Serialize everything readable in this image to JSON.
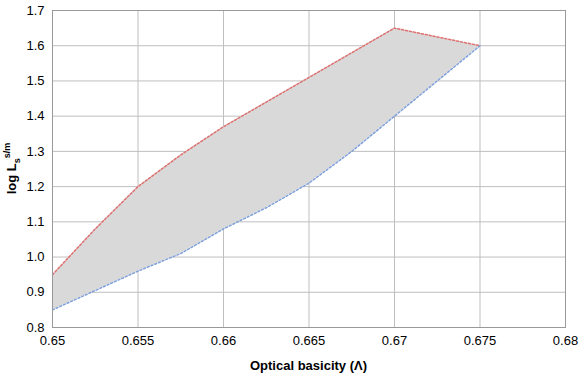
{
  "chart_data": {
    "type": "area_between",
    "x_label": "Optical basicity (Λ)",
    "y_label": "log L",
    "y_label_sub": "s",
    "y_label_sup": "s/m",
    "x": [
      0.65,
      0.6525,
      0.655,
      0.6575,
      0.66,
      0.6625,
      0.665,
      0.6675,
      0.67,
      0.6725,
      0.675
    ],
    "series": [
      {
        "color": "#e07070",
        "line_style": "dotted",
        "values": [
          0.95,
          1.08,
          1.2,
          1.29,
          1.37,
          1.44,
          1.51,
          1.58,
          1.65,
          1.625,
          1.6
        ]
      },
      {
        "color": "#7f9fd8",
        "line_style": "dotted",
        "values": [
          0.85,
          0.905,
          0.96,
          1.01,
          1.08,
          1.14,
          1.21,
          1.3,
          1.4,
          1.5,
          1.6
        ]
      }
    ],
    "color": "#d9d9d9",
    "xlim": [
      0.65,
      0.68
    ],
    "xticks": [
      0.65,
      0.655,
      0.66,
      0.665,
      0.67,
      0.675,
      0.68
    ],
    "ylim": [
      0.8,
      1.7
    ],
    "yticks": [
      0.8,
      0.9,
      {
        "value": 1,
        "label": "1.0"
      },
      1.1,
      1.2,
      1.3,
      1.4,
      1.5,
      1.6,
      1.7
    ],
    "grid": true
  }
}
